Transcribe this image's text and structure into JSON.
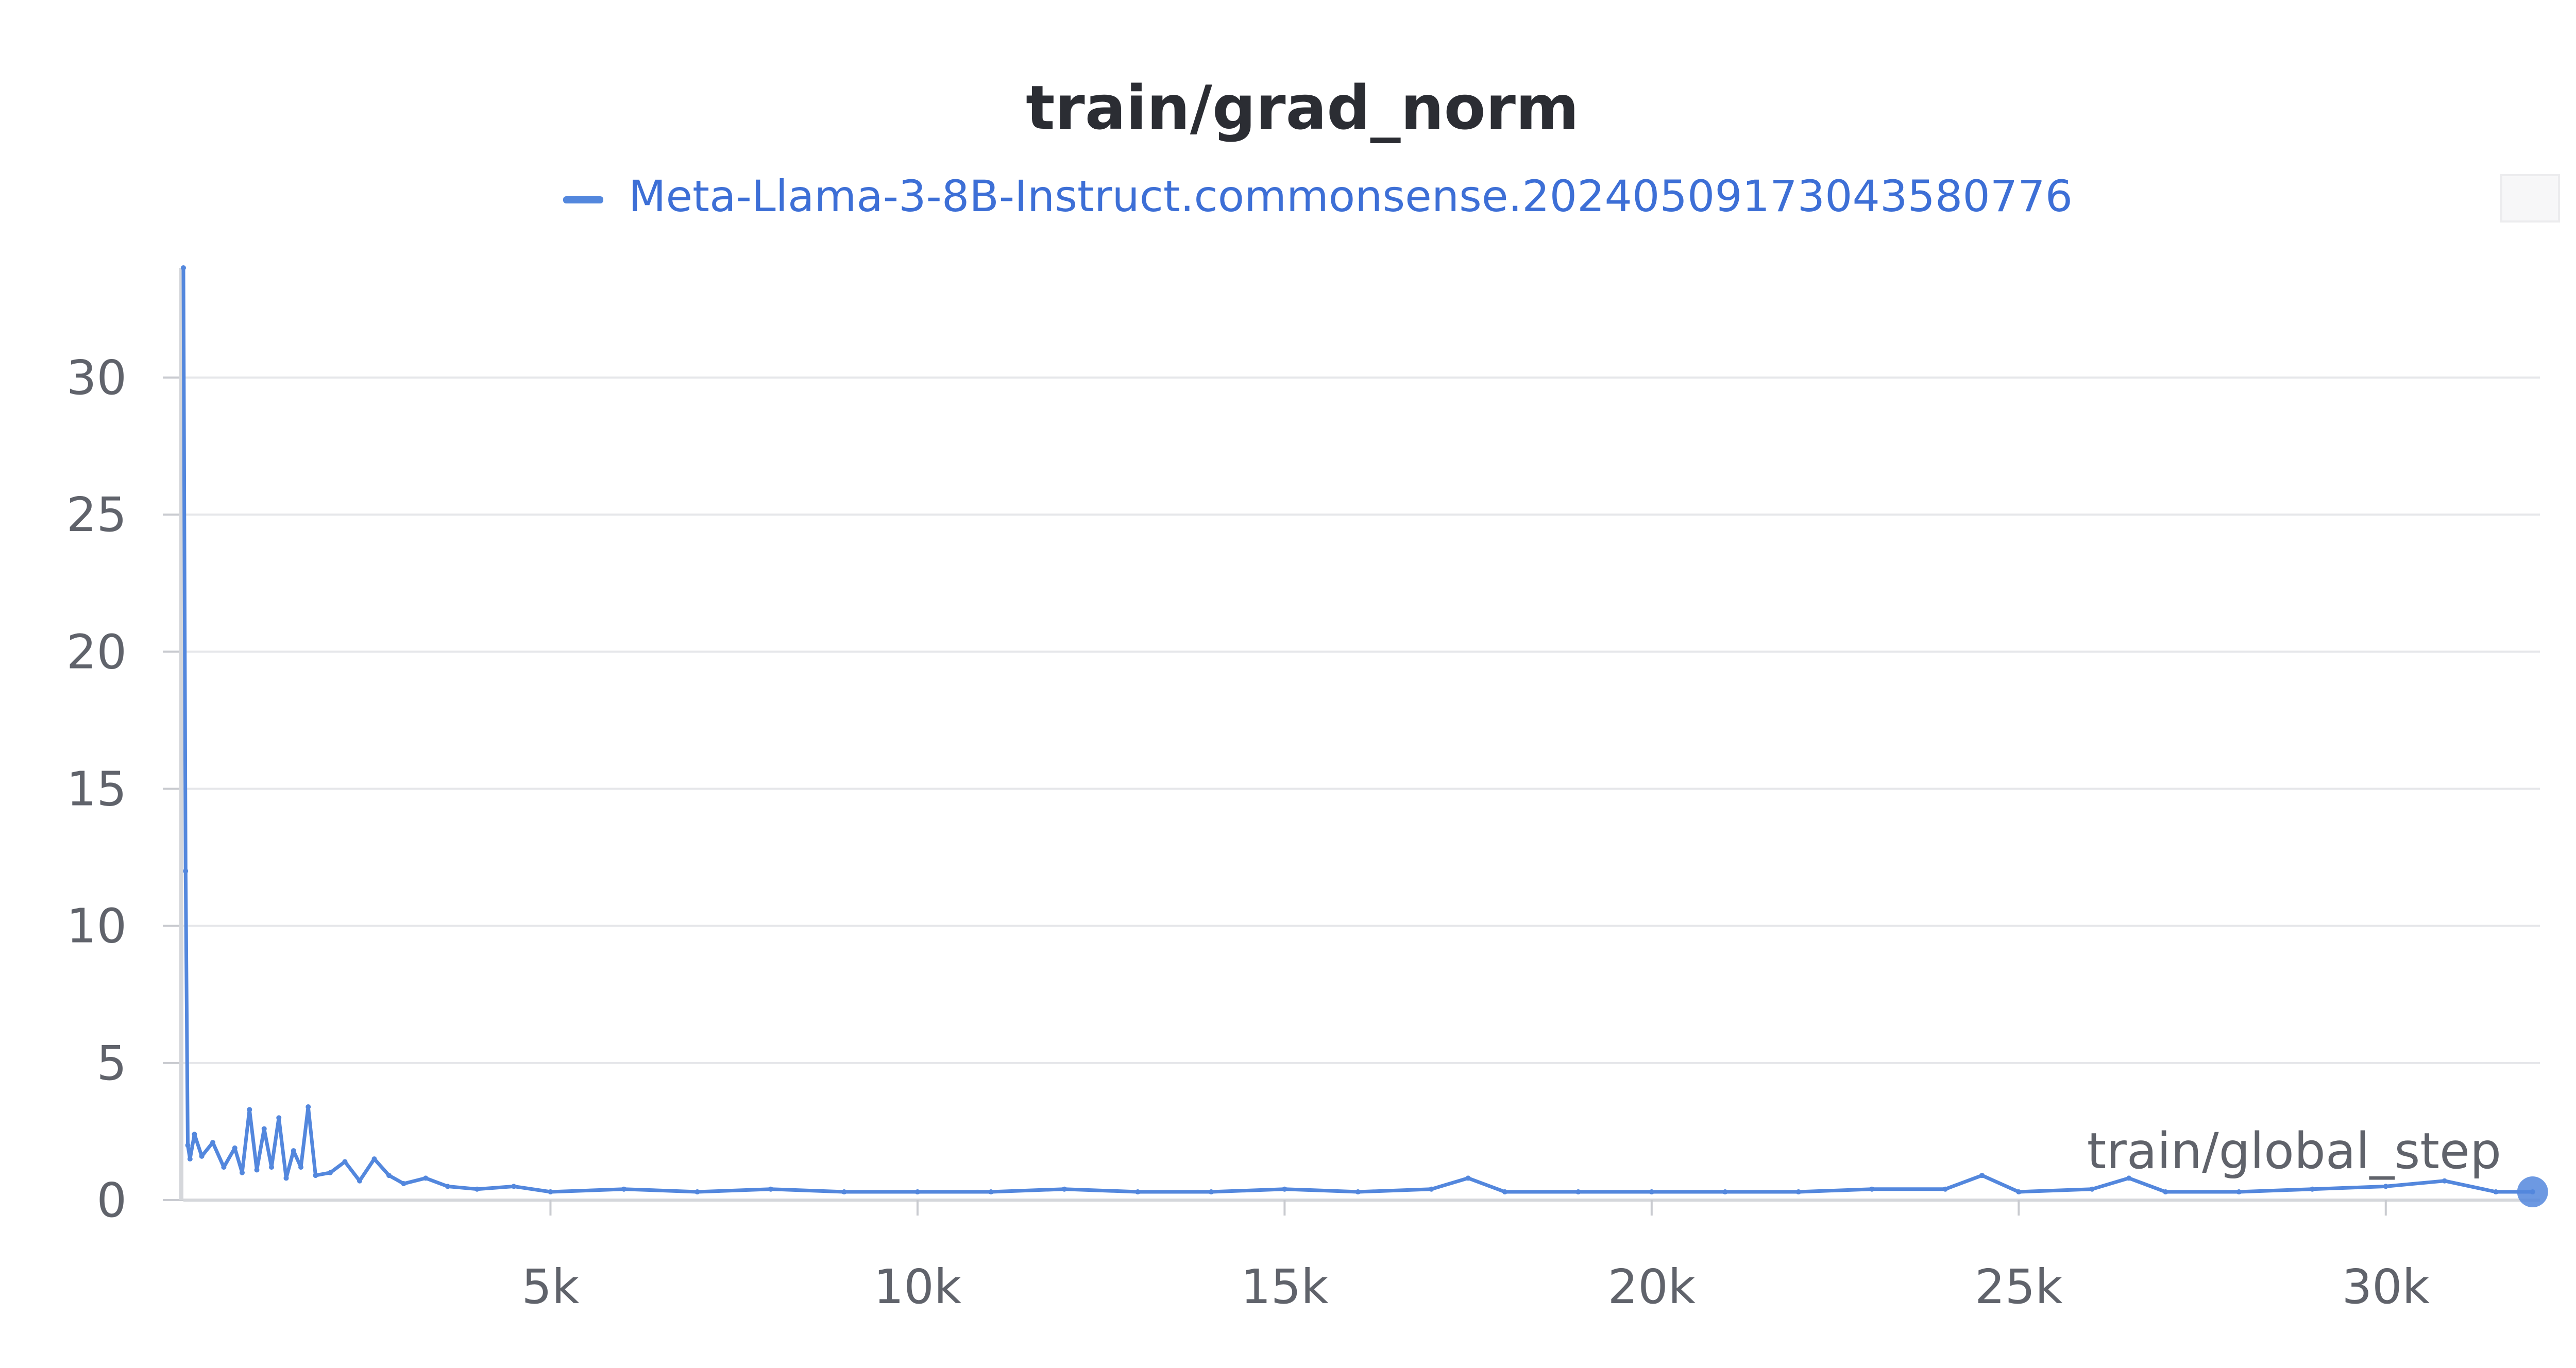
{
  "chart_data": {
    "type": "line",
    "title": "train/grad_norm",
    "xlabel": "train/global_step",
    "ylabel": "",
    "xlim": [
      0,
      32100
    ],
    "ylim": [
      0,
      34
    ],
    "x_ticks": [
      {
        "value": 5000,
        "label": "5k"
      },
      {
        "value": 10000,
        "label": "10k"
      },
      {
        "value": 15000,
        "label": "15k"
      },
      {
        "value": 20000,
        "label": "20k"
      },
      {
        "value": 25000,
        "label": "25k"
      },
      {
        "value": 30000,
        "label": "30k"
      }
    ],
    "y_ticks": [
      {
        "value": 0,
        "label": "0"
      },
      {
        "value": 5,
        "label": "5"
      },
      {
        "value": 10,
        "label": "10"
      },
      {
        "value": 15,
        "label": "15"
      },
      {
        "value": 20,
        "label": "20"
      },
      {
        "value": 25,
        "label": "25"
      },
      {
        "value": 30,
        "label": "30"
      }
    ],
    "grid": true,
    "legend_position": "top-center",
    "series": [
      {
        "name": "Meta-Llama-3-8B-Instruct.commonsense.20240509173043580776",
        "color": "#5387dd",
        "x": [
          0,
          30,
          60,
          90,
          150,
          250,
          400,
          550,
          700,
          800,
          900,
          1000,
          1100,
          1200,
          1300,
          1400,
          1500,
          1600,
          1700,
          1800,
          2000,
          2200,
          2400,
          2600,
          2800,
          3000,
          3300,
          3600,
          4000,
          4500,
          5000,
          6000,
          7000,
          8000,
          9000,
          10000,
          11000,
          12000,
          13000,
          14000,
          15000,
          16000,
          17000,
          17500,
          18000,
          19000,
          20000,
          21000,
          22000,
          23000,
          24000,
          24500,
          25000,
          26000,
          26500,
          27000,
          28000,
          29000,
          30000,
          30800,
          31500,
          32000
        ],
        "values": [
          34.0,
          12.0,
          2.0,
          1.5,
          2.4,
          1.6,
          2.1,
          1.2,
          1.9,
          1.0,
          3.3,
          1.1,
          2.6,
          1.2,
          3.0,
          0.8,
          1.8,
          1.2,
          3.4,
          0.9,
          1.0,
          1.4,
          0.7,
          1.5,
          0.9,
          0.6,
          0.8,
          0.5,
          0.4,
          0.5,
          0.3,
          0.4,
          0.3,
          0.4,
          0.3,
          0.3,
          0.3,
          0.4,
          0.3,
          0.3,
          0.4,
          0.3,
          0.4,
          0.8,
          0.3,
          0.3,
          0.3,
          0.3,
          0.3,
          0.4,
          0.4,
          0.9,
          0.3,
          0.4,
          0.8,
          0.3,
          0.3,
          0.4,
          0.5,
          0.7,
          0.3,
          0.3
        ]
      }
    ]
  }
}
